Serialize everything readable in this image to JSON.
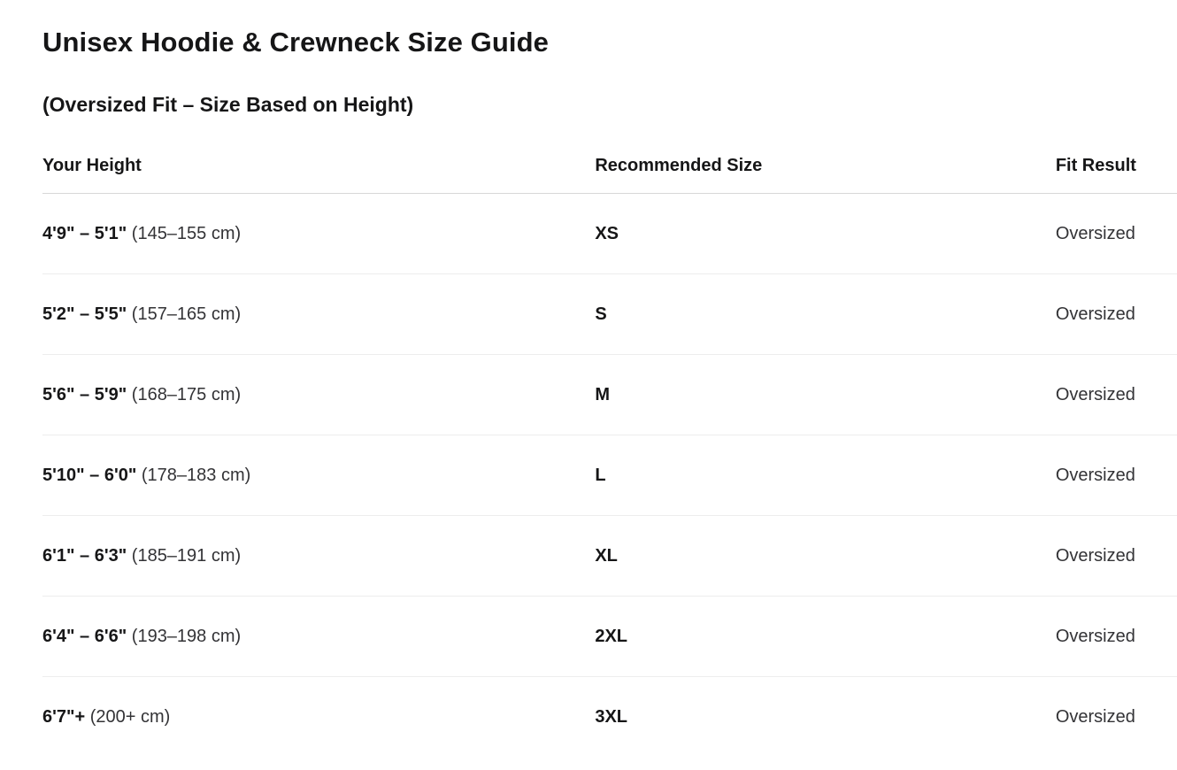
{
  "page": {
    "title": "Unisex Hoodie & Crewneck Size Guide",
    "subtitle": "(Oversized Fit – Size Based on Height)"
  },
  "table": {
    "columns": [
      "Your Height",
      "Recommended Size",
      "Fit Result"
    ],
    "rows": [
      {
        "height_range": "4'9\" – 5'1\"",
        "height_cm": "(145–155 cm)",
        "size": "XS",
        "fit": "Oversized"
      },
      {
        "height_range": "5'2\" – 5'5\"",
        "height_cm": "(157–165 cm)",
        "size": "S",
        "fit": "Oversized"
      },
      {
        "height_range": "5'6\" – 5'9\"",
        "height_cm": "(168–175 cm)",
        "size": "M",
        "fit": "Oversized"
      },
      {
        "height_range": "5'10\" – 6'0\"",
        "height_cm": "(178–183 cm)",
        "size": "L",
        "fit": "Oversized"
      },
      {
        "height_range": "6'1\" – 6'3\"",
        "height_cm": "(185–191 cm)",
        "size": "XL",
        "fit": "Oversized"
      },
      {
        "height_range": "6'4\" – 6'6\"",
        "height_cm": "(193–198 cm)",
        "size": "2XL",
        "fit": "Oversized"
      },
      {
        "height_range": "6'7\"+",
        "height_cm": "(200+ cm)",
        "size": "3XL",
        "fit": "Oversized"
      }
    ]
  },
  "colors": {
    "background": "#ffffff",
    "text_primary": "#161617",
    "text_secondary": "#333336",
    "divider_header": "#d8d8d8",
    "divider_row": "#ededed"
  }
}
